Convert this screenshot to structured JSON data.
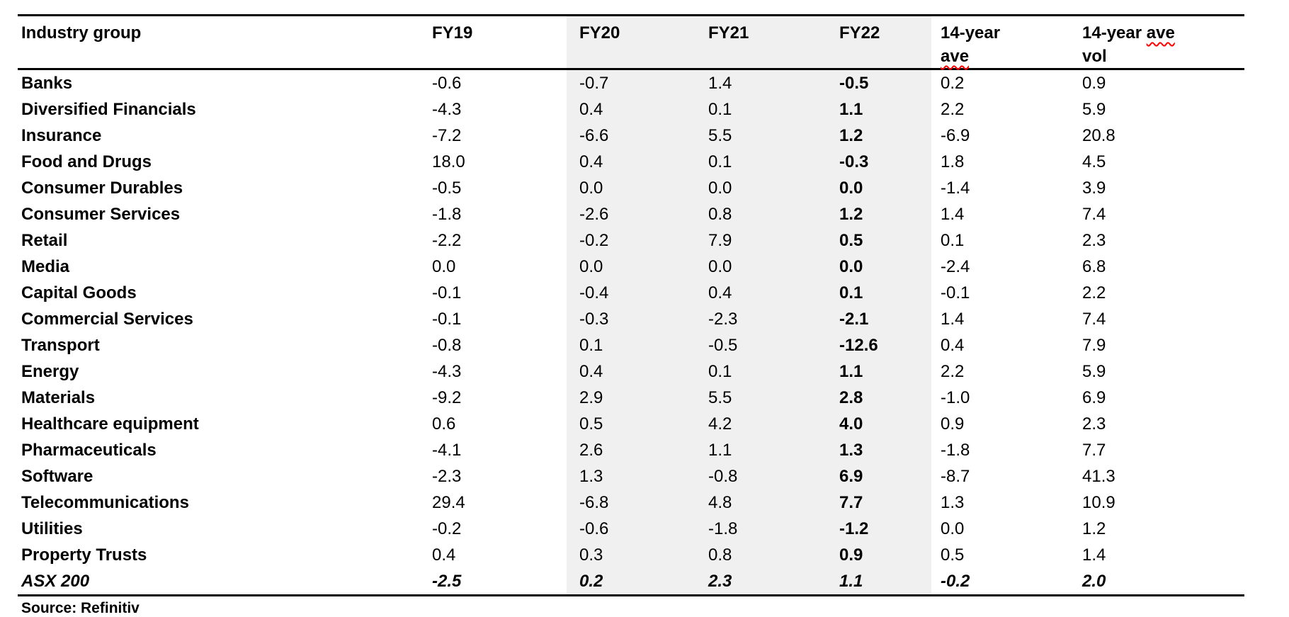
{
  "document": {
    "footer_caption": "Source: Refinitiv"
  },
  "colors": {
    "background": "#ffffff",
    "text": "#000000",
    "shaded_band": "#f0f0f0",
    "spellcheck_underline": "#ff0000"
  },
  "table": {
    "header": {
      "industry": "Industry group",
      "fy19": "FY19",
      "fy20": "FY20",
      "fy21": "FY21",
      "fy22": "FY22",
      "ave_line1": "14-year",
      "ave_line2": "ave",
      "avevol_line1a": "14-year",
      "avevol_line1b": "ave",
      "avevol_line2": "vol"
    },
    "rows": [
      {
        "name": "Banks",
        "fy19": "-0.6",
        "fy20": "-0.7",
        "fy21": "1.4",
        "fy22": "-0.5",
        "ave14": "0.2",
        "vol14": "0.9"
      },
      {
        "name": "Diversified Financials",
        "fy19": "-4.3",
        "fy20": "0.4",
        "fy21": "0.1",
        "fy22": "1.1",
        "ave14": "2.2",
        "vol14": "5.9"
      },
      {
        "name": "Insurance",
        "fy19": "-7.2",
        "fy20": "-6.6",
        "fy21": "5.5",
        "fy22": "1.2",
        "ave14": "-6.9",
        "vol14": "20.8"
      },
      {
        "name": "Food and Drugs",
        "fy19": "18.0",
        "fy20": "0.4",
        "fy21": "0.1",
        "fy22": "-0.3",
        "ave14": "1.8",
        "vol14": "4.5"
      },
      {
        "name": "Consumer Durables",
        "fy19": "-0.5",
        "fy20": "0.0",
        "fy21": "0.0",
        "fy22": "0.0",
        "ave14": "-1.4",
        "vol14": "3.9"
      },
      {
        "name": "Consumer Services",
        "fy19": "-1.8",
        "fy20": "-2.6",
        "fy21": "0.8",
        "fy22": "1.2",
        "ave14": "1.4",
        "vol14": "7.4"
      },
      {
        "name": "Retail",
        "fy19": "-2.2",
        "fy20": "-0.2",
        "fy21": "7.9",
        "fy22": "0.5",
        "ave14": "0.1",
        "vol14": "2.3"
      },
      {
        "name": "Media",
        "fy19": "0.0",
        "fy20": "0.0",
        "fy21": "0.0",
        "fy22": "0.0",
        "ave14": "-2.4",
        "vol14": "6.8"
      },
      {
        "name": "Capital Goods",
        "fy19": "-0.1",
        "fy20": "-0.4",
        "fy21": "0.4",
        "fy22": "0.1",
        "ave14": "-0.1",
        "vol14": "2.2"
      },
      {
        "name": "Commercial Services",
        "fy19": "-0.1",
        "fy20": "-0.3",
        "fy21": "-2.3",
        "fy22": "-2.1",
        "ave14": "1.4",
        "vol14": "7.4"
      },
      {
        "name": "Transport",
        "fy19": "-0.8",
        "fy20": "0.1",
        "fy21": "-0.5",
        "fy22": "-12.6",
        "ave14": "0.4",
        "vol14": "7.9"
      },
      {
        "name": "Energy",
        "fy19": "-4.3",
        "fy20": "0.4",
        "fy21": "0.1",
        "fy22": "1.1",
        "ave14": "2.2",
        "vol14": "5.9"
      },
      {
        "name": "Materials",
        "fy19": "-9.2",
        "fy20": "2.9",
        "fy21": "5.5",
        "fy22": "2.8",
        "ave14": "-1.0",
        "vol14": "6.9"
      },
      {
        "name": "Healthcare equipment",
        "fy19": "0.6",
        "fy20": "0.5",
        "fy21": "4.2",
        "fy22": "4.0",
        "ave14": "0.9",
        "vol14": "2.3"
      },
      {
        "name": "Pharmaceuticals",
        "fy19": "-4.1",
        "fy20": "2.6",
        "fy21": "1.1",
        "fy22": "1.3",
        "ave14": "-1.8",
        "vol14": "7.7"
      },
      {
        "name": "Software",
        "fy19": "-2.3",
        "fy20": "1.3",
        "fy21": "-0.8",
        "fy22": "6.9",
        "ave14": "-8.7",
        "vol14": "41.3"
      },
      {
        "name": "Telecommunications",
        "fy19": "29.4",
        "fy20": "-6.8",
        "fy21": "4.8",
        "fy22": "7.7",
        "ave14": "1.3",
        "vol14": "10.9"
      },
      {
        "name": "Utilities",
        "fy19": "-0.2",
        "fy20": "-0.6",
        "fy21": "-1.8",
        "fy22": "-1.2",
        "ave14": "0.0",
        "vol14": "1.2"
      },
      {
        "name": "Property Trusts",
        "fy19": "0.4",
        "fy20": "0.3",
        "fy21": "0.8",
        "fy22": "0.9",
        "ave14": "0.5",
        "vol14": "1.4"
      },
      {
        "name": "ASX 200",
        "fy19": "-2.5",
        "fy20": "0.2",
        "fy21": "2.3",
        "fy22": "1.1",
        "ave14": "-0.2",
        "vol14": "2.0"
      }
    ]
  }
}
